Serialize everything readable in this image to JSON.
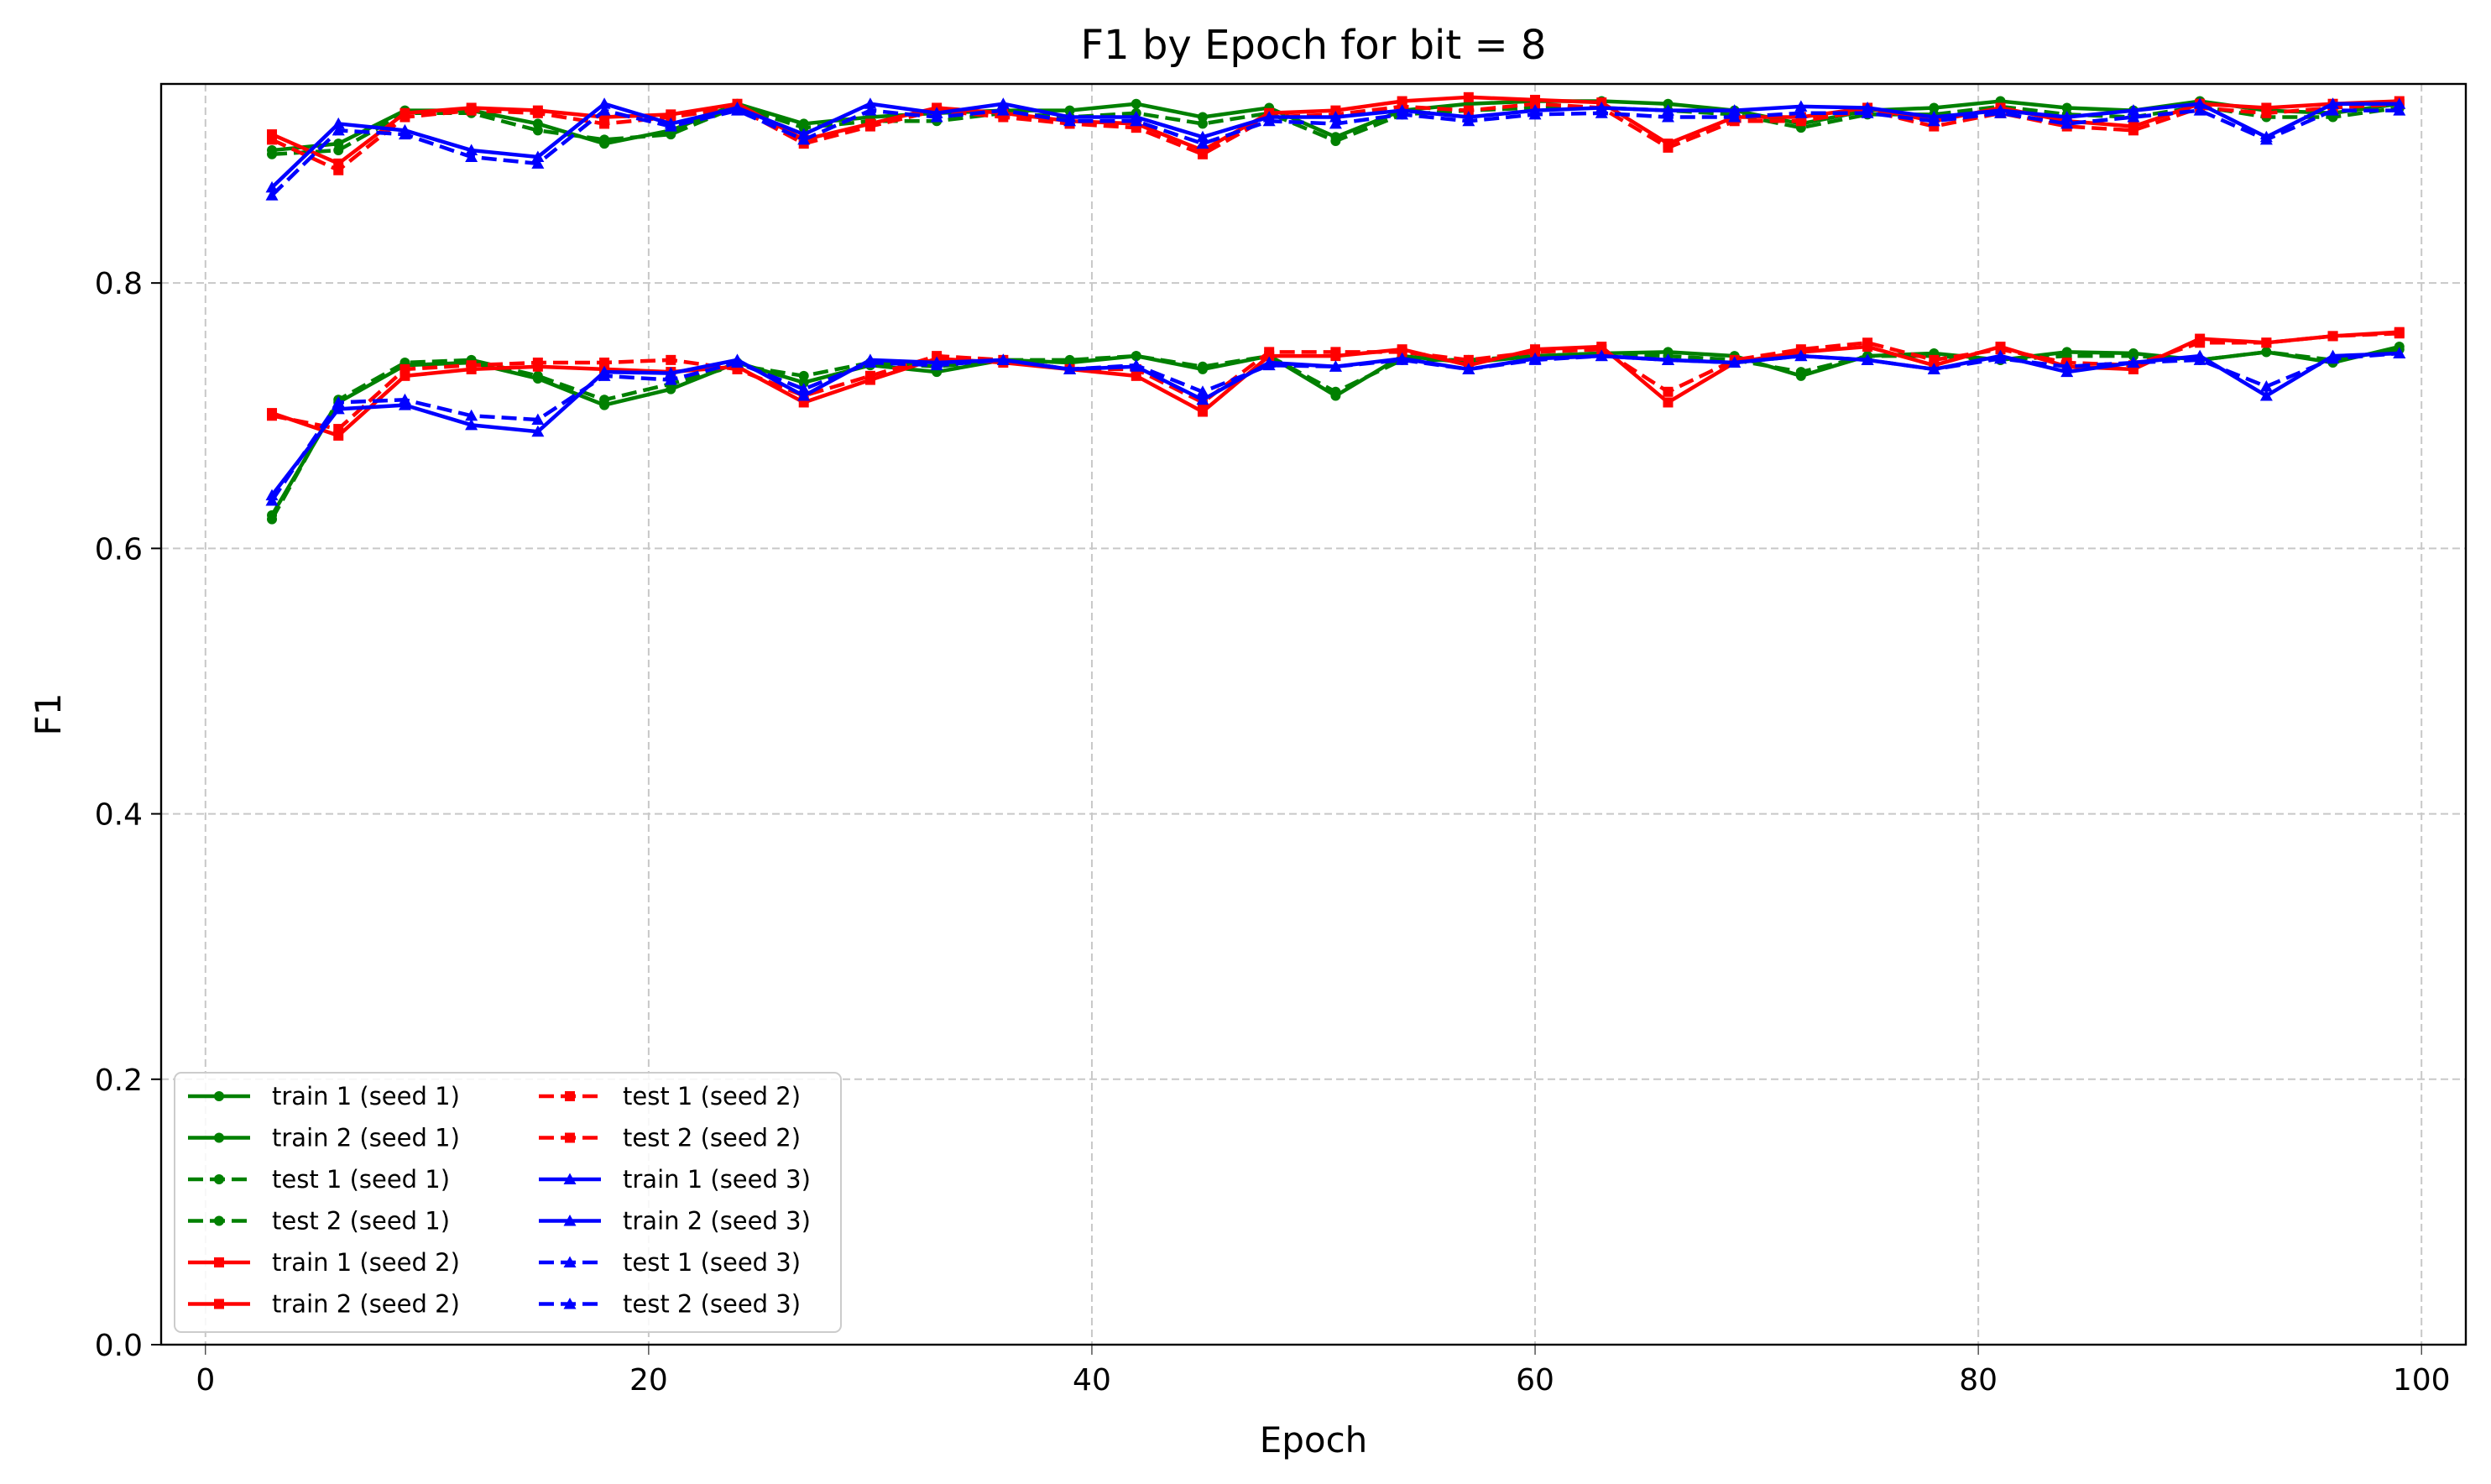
{
  "chart_data": {
    "type": "line",
    "title": "F1 by Epoch for bit = 8",
    "xlabel": "Epoch",
    "ylabel": "F1",
    "xlim": [
      -2,
      102
    ],
    "ylim": [
      0.0,
      0.95
    ],
    "xticks": [
      0,
      20,
      40,
      60,
      80,
      100
    ],
    "yticks": [
      0.0,
      0.2,
      0.4,
      0.6,
      0.8
    ],
    "xtick_labels": [
      "0",
      "20",
      "40",
      "60",
      "80",
      "100"
    ],
    "ytick_labels": [
      "0.0",
      "0.2",
      "0.4",
      "0.6",
      "0.8"
    ],
    "grid": true,
    "legend_position": "lower-left",
    "legend_columns": 2,
    "x": [
      3,
      6,
      9,
      12,
      15,
      18,
      21,
      24,
      27,
      30,
      33,
      36,
      39,
      42,
      45,
      48,
      51,
      54,
      57,
      60,
      63,
      66,
      69,
      72,
      75,
      78,
      81,
      84,
      87,
      90,
      93,
      96,
      99
    ],
    "series": [
      {
        "name": "train 1 (seed 1)",
        "color": "#008000",
        "dash": "solid",
        "marker": "circle",
        "values": [
          0.9,
          0.905,
          0.93,
          0.93,
          0.92,
          0.905,
          0.915,
          0.935,
          0.92,
          0.925,
          0.928,
          0.93,
          0.93,
          0.935,
          0.925,
          0.932,
          0.91,
          0.93,
          0.935,
          0.937,
          0.937,
          0.935,
          0.93,
          0.92,
          0.93,
          0.932,
          0.937,
          0.932,
          0.93,
          0.937,
          0.93,
          0.928,
          0.935
        ]
      },
      {
        "name": "train 2 (seed 1)",
        "color": "#008000",
        "dash": "solid",
        "marker": "circle",
        "values": [
          0.625,
          0.71,
          0.738,
          0.74,
          0.728,
          0.708,
          0.72,
          0.74,
          0.725,
          0.738,
          0.733,
          0.742,
          0.74,
          0.745,
          0.735,
          0.745,
          0.715,
          0.745,
          0.74,
          0.745,
          0.747,
          0.748,
          0.745,
          0.73,
          0.745,
          0.747,
          0.742,
          0.748,
          0.747,
          0.742,
          0.748,
          0.74,
          0.752
        ]
      },
      {
        "name": "test 1 (seed 1)",
        "color": "#008000",
        "dash": "dash",
        "marker": "circle",
        "values": [
          0.897,
          0.9,
          0.928,
          0.928,
          0.915,
          0.908,
          0.912,
          0.933,
          0.917,
          0.922,
          0.922,
          0.928,
          0.925,
          0.928,
          0.92,
          0.928,
          0.907,
          0.927,
          0.93,
          0.932,
          0.932,
          0.93,
          0.927,
          0.917,
          0.927,
          0.927,
          0.933,
          0.927,
          0.925,
          0.933,
          0.925,
          0.925,
          0.932
        ]
      },
      {
        "name": "test 2 (seed 1)",
        "color": "#008000",
        "dash": "dash",
        "marker": "circle",
        "values": [
          0.622,
          0.712,
          0.74,
          0.742,
          0.73,
          0.712,
          0.724,
          0.738,
          0.73,
          0.74,
          0.737,
          0.742,
          0.742,
          0.745,
          0.737,
          0.745,
          0.718,
          0.742,
          0.742,
          0.745,
          0.747,
          0.745,
          0.742,
          0.733,
          0.745,
          0.745,
          0.742,
          0.745,
          0.745,
          0.742,
          0.748,
          0.742,
          0.75
        ]
      },
      {
        "name": "train 1 (seed 2)",
        "color": "#ff0000",
        "dash": "solid",
        "marker": "square",
        "values": [
          0.912,
          0.89,
          0.928,
          0.932,
          0.93,
          0.925,
          0.927,
          0.935,
          0.908,
          0.92,
          0.932,
          0.928,
          0.922,
          0.92,
          0.9,
          0.928,
          0.93,
          0.937,
          0.94,
          0.938,
          0.936,
          0.905,
          0.925,
          0.925,
          0.932,
          0.922,
          0.932,
          0.922,
          0.918,
          0.935,
          0.932,
          0.935,
          0.937
        ]
      },
      {
        "name": "train 2 (seed 2)",
        "color": "#ff0000",
        "dash": "solid",
        "marker": "square",
        "values": [
          0.702,
          0.685,
          0.73,
          0.735,
          0.737,
          0.735,
          0.733,
          0.737,
          0.71,
          0.727,
          0.743,
          0.74,
          0.735,
          0.73,
          0.703,
          0.745,
          0.745,
          0.75,
          0.738,
          0.75,
          0.752,
          0.71,
          0.74,
          0.748,
          0.752,
          0.738,
          0.752,
          0.737,
          0.735,
          0.758,
          0.755,
          0.76,
          0.763
        ]
      },
      {
        "name": "test 1 (seed 2)",
        "color": "#ff0000",
        "dash": "dash",
        "marker": "square",
        "values": [
          0.908,
          0.885,
          0.925,
          0.93,
          0.928,
          0.92,
          0.925,
          0.932,
          0.905,
          0.918,
          0.93,
          0.925,
          0.92,
          0.917,
          0.897,
          0.925,
          0.927,
          0.933,
          0.93,
          0.935,
          0.932,
          0.902,
          0.922,
          0.922,
          0.93,
          0.918,
          0.928,
          0.918,
          0.915,
          0.932,
          0.928,
          0.932,
          0.935
        ]
      },
      {
        "name": "test 2 (seed 2)",
        "color": "#ff0000",
        "dash": "dash",
        "marker": "square",
        "values": [
          0.7,
          0.69,
          0.735,
          0.738,
          0.74,
          0.74,
          0.742,
          0.735,
          0.715,
          0.73,
          0.745,
          0.742,
          0.735,
          0.735,
          0.71,
          0.748,
          0.748,
          0.748,
          0.742,
          0.748,
          0.75,
          0.718,
          0.742,
          0.75,
          0.755,
          0.742,
          0.75,
          0.74,
          0.738,
          0.755,
          0.755,
          0.76,
          0.762
        ]
      },
      {
        "name": "train 1 (seed 3)",
        "color": "#0000ff",
        "dash": "solid",
        "marker": "triangle",
        "values": [
          0.872,
          0.92,
          0.915,
          0.9,
          0.895,
          0.935,
          0.92,
          0.932,
          0.912,
          0.935,
          0.928,
          0.935,
          0.925,
          0.925,
          0.91,
          0.925,
          0.925,
          0.93,
          0.925,
          0.93,
          0.932,
          0.93,
          0.93,
          0.933,
          0.932,
          0.925,
          0.93,
          0.925,
          0.93,
          0.935,
          0.91,
          0.935,
          0.935
        ]
      },
      {
        "name": "train 2 (seed 3)",
        "color": "#0000ff",
        "dash": "solid",
        "marker": "triangle",
        "values": [
          0.64,
          0.705,
          0.708,
          0.693,
          0.688,
          0.733,
          0.732,
          0.742,
          0.715,
          0.742,
          0.74,
          0.742,
          0.735,
          0.737,
          0.712,
          0.74,
          0.737,
          0.743,
          0.735,
          0.743,
          0.745,
          0.742,
          0.74,
          0.745,
          0.742,
          0.735,
          0.745,
          0.733,
          0.74,
          0.745,
          0.715,
          0.745,
          0.747
        ]
      },
      {
        "name": "test 1 (seed 3)",
        "color": "#0000ff",
        "dash": "dash",
        "marker": "triangle",
        "values": [
          0.866,
          0.915,
          0.912,
          0.895,
          0.89,
          0.93,
          0.918,
          0.93,
          0.908,
          0.93,
          0.925,
          0.93,
          0.922,
          0.922,
          0.905,
          0.922,
          0.92,
          0.927,
          0.922,
          0.927,
          0.928,
          0.925,
          0.925,
          0.928,
          0.928,
          0.922,
          0.928,
          0.92,
          0.925,
          0.93,
          0.908,
          0.93,
          0.93
        ]
      },
      {
        "name": "test 2 (seed 3)",
        "color": "#0000ff",
        "dash": "dash",
        "marker": "triangle",
        "values": [
          0.636,
          0.71,
          0.712,
          0.7,
          0.697,
          0.73,
          0.727,
          0.74,
          0.72,
          0.74,
          0.738,
          0.742,
          0.735,
          0.738,
          0.718,
          0.738,
          0.737,
          0.742,
          0.735,
          0.742,
          0.745,
          0.742,
          0.74,
          0.745,
          0.742,
          0.735,
          0.743,
          0.737,
          0.74,
          0.742,
          0.722,
          0.743,
          0.747
        ]
      }
    ]
  }
}
